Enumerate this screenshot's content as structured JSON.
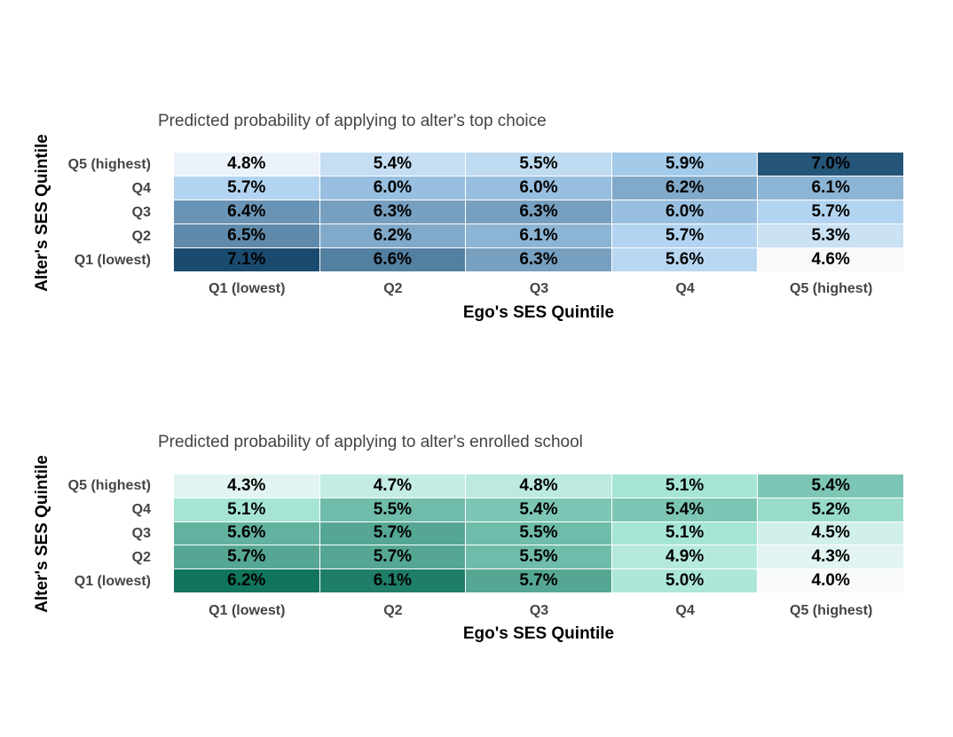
{
  "chart_data": [
    {
      "type": "heatmap",
      "title": "Predicted probability of applying to alter's top choice",
      "xlabel": "Ego's SES Quintile",
      "ylabel": "Alter's SES Quintile",
      "x_categories": [
        "Q1 (lowest)",
        "Q2",
        "Q3",
        "Q4",
        "Q5 (highest)"
      ],
      "y_categories": [
        "Q5 (highest)",
        "Q4",
        "Q3",
        "Q2",
        "Q1 (lowest)"
      ],
      "values": [
        [
          4.8,
          5.4,
          5.5,
          5.9,
          7.0
        ],
        [
          5.7,
          6.0,
          6.0,
          6.2,
          6.1
        ],
        [
          6.4,
          6.3,
          6.3,
          6.0,
          5.7
        ],
        [
          6.5,
          6.2,
          6.1,
          5.7,
          5.3
        ],
        [
          7.1,
          6.6,
          6.3,
          5.6,
          4.6
        ]
      ],
      "labels": [
        [
          "4.8%",
          "5.4%",
          "5.5%",
          "5.9%",
          "7.0%"
        ],
        [
          "5.7%",
          "6.0%",
          "6.0%",
          "6.2%",
          "6.1%"
        ],
        [
          "6.4%",
          "6.3%",
          "6.3%",
          "6.0%",
          "5.7%"
        ],
        [
          "6.5%",
          "6.2%",
          "6.1%",
          "5.7%",
          "5.3%"
        ],
        [
          "7.1%",
          "6.6%",
          "6.3%",
          "5.6%",
          "4.6%"
        ]
      ],
      "color_low": "#f7f9fb",
      "color_mid": "#a9cfee",
      "color_high": "#1a4a6e"
    },
    {
      "type": "heatmap",
      "title": "Predicted probability of applying to alter's enrolled school",
      "xlabel": "Ego's SES Quintile",
      "ylabel": "Alter's SES Quintile",
      "x_categories": [
        "Q1 (lowest)",
        "Q2",
        "Q3",
        "Q4",
        "Q5 (highest)"
      ],
      "y_categories": [
        "Q5 (highest)",
        "Q4",
        "Q3",
        "Q2",
        "Q1 (lowest)"
      ],
      "values": [
        [
          4.3,
          4.7,
          4.8,
          5.1,
          5.4
        ],
        [
          5.1,
          5.5,
          5.4,
          5.4,
          5.2
        ],
        [
          5.6,
          5.7,
          5.5,
          5.1,
          4.5
        ],
        [
          5.7,
          5.7,
          5.5,
          4.9,
          4.3
        ],
        [
          6.2,
          6.1,
          5.7,
          5.0,
          4.0
        ]
      ],
      "labels": [
        [
          "4.3%",
          "4.7%",
          "4.8%",
          "5.1%",
          "5.4%"
        ],
        [
          "5.1%",
          "5.5%",
          "5.4%",
          "5.4%",
          "5.2%"
        ],
        [
          "5.6%",
          "5.7%",
          "5.5%",
          "5.1%",
          "4.5%"
        ],
        [
          "5.7%",
          "5.7%",
          "5.5%",
          "4.9%",
          "4.3%"
        ],
        [
          "6.2%",
          "6.1%",
          "5.7%",
          "5.0%",
          "4.0%"
        ]
      ],
      "color_low": "#f7f9fb",
      "color_mid": "#a6e5d6",
      "color_high": "#11745d"
    }
  ]
}
